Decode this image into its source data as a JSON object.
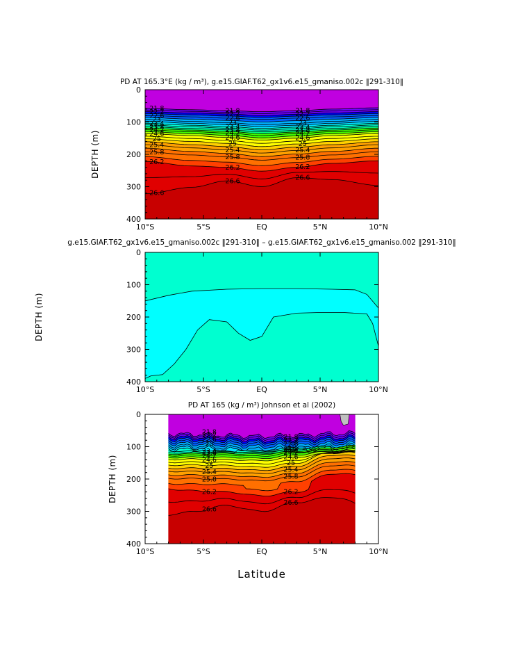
{
  "chart_data": [
    {
      "type": "heatmap",
      "title": "PD AT 165.3°E (kg / m³), g.e15.GIAF.T62_gx1v6.e15_gmaniso.002c ‖291-310‖",
      "ylabel": "DEPTH (m)",
      "xlabel": "",
      "x_ticks": [
        "10°S",
        "5°S",
        "EQ",
        "5°N",
        "10°N"
      ],
      "y_ticks": [
        "0",
        "100",
        "200",
        "300",
        "400"
      ],
      "xlim": [
        -10,
        10
      ],
      "ylim": [
        400,
        0
      ],
      "contour_labels": [
        "21.8",
        "22.2",
        "22.6",
        "23",
        "23.4",
        "23.8",
        "24.2",
        "24.6",
        "25",
        "25.4",
        "25.8",
        "26.2",
        "26.6"
      ],
      "contour_depths": [
        {
          "level": "21.8",
          "x": [
            -10,
            -6,
            -3,
            0,
            3,
            6,
            10
          ],
          "y": [
            58,
            62,
            65,
            68,
            65,
            60,
            56
          ]
        },
        {
          "level": "22.2",
          "x": [
            -10,
            -6,
            -3,
            0,
            3,
            6,
            10
          ],
          "y": [
            68,
            72,
            75,
            80,
            76,
            72,
            68
          ]
        },
        {
          "level": "22.6",
          "x": [
            -10,
            -6,
            -3,
            0,
            3,
            6,
            10
          ],
          "y": [
            80,
            84,
            88,
            92,
            88,
            84,
            80
          ]
        },
        {
          "level": "23",
          "x": [
            -10,
            -6,
            -3,
            0,
            3,
            6,
            10
          ],
          "y": [
            92,
            98,
            102,
            108,
            104,
            98,
            92
          ]
        },
        {
          "level": "23.4",
          "x": [
            -10,
            -6,
            -3,
            0,
            3,
            6,
            10
          ],
          "y": [
            104,
            110,
            114,
            120,
            116,
            110,
            104
          ]
        },
        {
          "level": "23.8",
          "x": [
            -10,
            -6,
            -3,
            0,
            3,
            6,
            10
          ],
          "y": [
            114,
            120,
            124,
            130,
            126,
            120,
            114
          ]
        },
        {
          "level": "24.2",
          "x": [
            -10,
            -6,
            -3,
            0,
            3,
            6,
            10
          ],
          "y": [
            124,
            130,
            134,
            142,
            136,
            130,
            124
          ]
        },
        {
          "level": "24.6",
          "x": [
            -10,
            -6,
            -3,
            0,
            3,
            6,
            10
          ],
          "y": [
            136,
            142,
            148,
            156,
            150,
            142,
            136
          ]
        },
        {
          "level": "25",
          "x": [
            -10,
            -6,
            -3,
            0,
            3,
            6,
            10
          ],
          "y": [
            152,
            160,
            166,
            176,
            168,
            160,
            152
          ]
        },
        {
          "level": "25.4",
          "x": [
            -10,
            -6,
            -3,
            0,
            3,
            6,
            10
          ],
          "y": [
            170,
            180,
            186,
            196,
            188,
            180,
            170
          ]
        },
        {
          "level": "25.8",
          "x": [
            -10,
            -6,
            -3,
            0,
            3,
            6,
            10
          ],
          "y": [
            192,
            202,
            208,
            218,
            210,
            202,
            192
          ]
        },
        {
          "level": "26.2",
          "x": [
            -10,
            -6,
            -3,
            0,
            3,
            6,
            10
          ],
          "y": [
            222,
            236,
            240,
            252,
            240,
            228,
            220
          ]
        },
        {
          "level": "26.6",
          "x": [
            -10,
            -6,
            -3,
            0,
            3,
            6,
            10
          ],
          "y": [
            322,
            302,
            282,
            300,
            272,
            278,
            296
          ]
        }
      ]
    },
    {
      "type": "heatmap",
      "title": "g.e15.GIAF.T62_gx1v6.e15_gmaniso.002c ‖291-310‖ – g.e15.GIAF.T62_gx1v6.e15_gmaniso.002 ‖291-310‖",
      "ylabel": "DEPTH (m)",
      "xlabel": "",
      "x_ticks": [
        "10°S",
        "5°S",
        "EQ",
        "5°N",
        "10°N"
      ],
      "y_ticks": [
        "0",
        "100",
        "200",
        "300",
        "400"
      ],
      "xlim": [
        -10,
        10
      ],
      "ylim": [
        400,
        0
      ],
      "colors": {
        "upper": "#00ffd0",
        "lower": "#00ffff",
        "boundary": "#00e0c0"
      }
    },
    {
      "type": "heatmap",
      "title": "PD AT 165 (kg / m³) Johnson et al (2002)",
      "ylabel": "DEPTH (m)",
      "xlabel": "Latitude",
      "x_ticks": [
        "10°S",
        "5°S",
        "EQ",
        "5°N",
        "10°N"
      ],
      "y_ticks": [
        "0",
        "100",
        "200",
        "300",
        "400"
      ],
      "xlim": [
        -10,
        10
      ],
      "ylim": [
        400,
        0
      ],
      "data_xrange": [
        -8,
        8
      ],
      "contour_labels": [
        "21.8",
        "22.2",
        "22.6",
        "23",
        "23.4",
        "23.8",
        "24.2",
        "24.6",
        "25",
        "25.4",
        "25.8",
        "26.2",
        "26.6"
      ]
    }
  ],
  "palette": [
    "#c000e0",
    "#7000ff",
    "#0000ff",
    "#0060ff",
    "#00b0ff",
    "#00e0ff",
    "#00ffd0",
    "#00ff80",
    "#40ff00",
    "#b0ff00",
    "#ffff00",
    "#ffd000",
    "#ffa000",
    "#ff7000",
    "#ff4000",
    "#e00000",
    "#c80000"
  ]
}
